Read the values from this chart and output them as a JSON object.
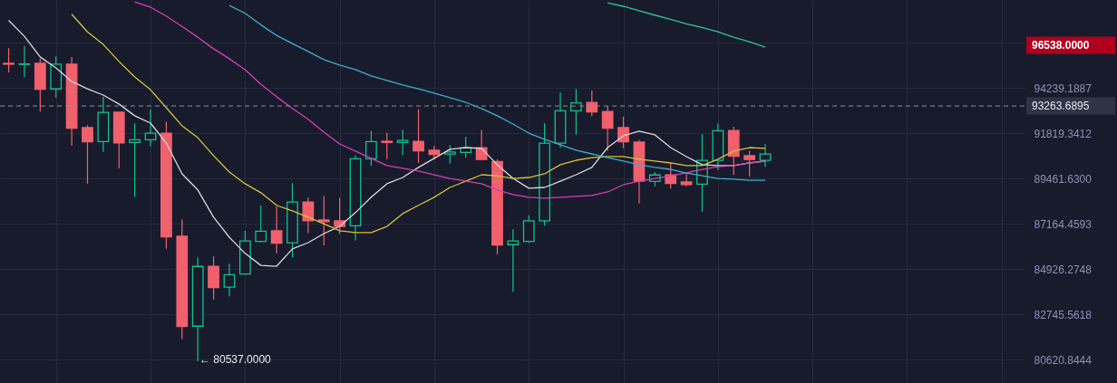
{
  "chart_data": {
    "type": "candlestick",
    "categories": [
      null,
      null,
      null,
      null,
      null,
      null,
      null,
      null,
      null,
      null,
      null,
      null,
      null,
      null,
      null,
      null,
      null,
      null,
      null,
      null,
      null,
      null,
      null,
      null,
      null,
      null,
      null,
      null,
      null,
      null,
      null,
      null,
      null,
      null,
      null,
      null,
      null,
      null,
      null,
      null,
      null,
      null,
      null,
      null,
      null,
      null,
      null,
      null,
      null
    ],
    "ohlc": [
      [
        95580,
        96410,
        95080,
        95530
      ],
      [
        95520,
        96538,
        94820,
        95540
      ],
      [
        95580,
        95830,
        92970,
        94160
      ],
      [
        94180,
        95960,
        93720,
        95530
      ],
      [
        95530,
        95930,
        91170,
        92080
      ],
      [
        92110,
        92240,
        89200,
        91360
      ],
      [
        91380,
        93760,
        90840,
        92920
      ],
      [
        92930,
        92930,
        89980,
        91310
      ],
      [
        91330,
        92320,
        88510,
        91470
      ],
      [
        91470,
        93080,
        91130,
        91820
      ],
      [
        91820,
        92430,
        85920,
        86510
      ],
      [
        86540,
        87380,
        81570,
        82160
      ],
      [
        82180,
        85490,
        80537,
        85050
      ],
      [
        85060,
        85540,
        83440,
        84020
      ],
      [
        84040,
        85190,
        83590,
        84650
      ],
      [
        84680,
        86810,
        84650,
        86300
      ],
      [
        86280,
        88090,
        86240,
        86790
      ],
      [
        86810,
        88030,
        85690,
        86190
      ],
      [
        86210,
        89230,
        85480,
        88260
      ],
      [
        88260,
        88480,
        86690,
        87310
      ],
      [
        87350,
        88560,
        86090,
        87260
      ],
      [
        87310,
        88470,
        86660,
        87030
      ],
      [
        87060,
        90650,
        86330,
        90480
      ],
      [
        90480,
        91930,
        90110,
        91380
      ],
      [
        91390,
        91830,
        90460,
        91330
      ],
      [
        91330,
        92000,
        90670,
        91430
      ],
      [
        91390,
        93090,
        90260,
        90890
      ],
      [
        90920,
        91140,
        90450,
        90700
      ],
      [
        90720,
        91190,
        90230,
        90830
      ],
      [
        90810,
        91630,
        90530,
        91050
      ],
      [
        91050,
        91980,
        90440,
        90440
      ],
      [
        90340,
        90450,
        85640,
        86100
      ],
      [
        86120,
        86880,
        83820,
        86300
      ],
      [
        86280,
        87590,
        86210,
        87310
      ],
      [
        87310,
        92350,
        87060,
        91290
      ],
      [
        91290,
        94000,
        91050,
        93010
      ],
      [
        93010,
        94180,
        91740,
        93430
      ],
      [
        93450,
        94090,
        92720,
        92950
      ],
      [
        92970,
        93260,
        90890,
        92080
      ],
      [
        92110,
        92690,
        91030,
        91360
      ],
      [
        91350,
        91470,
        88180,
        89320
      ],
      [
        89310,
        89790,
        89060,
        89640
      ],
      [
        89640,
        90260,
        88940,
        89200
      ],
      [
        89280,
        89790,
        89060,
        89150
      ],
      [
        89170,
        91770,
        87760,
        90390
      ],
      [
        90390,
        92320,
        89900,
        91950
      ],
      [
        91960,
        92160,
        89640,
        90610
      ],
      [
        90640,
        90890,
        89560,
        90440
      ],
      [
        90390,
        91240,
        90060,
        90720
      ]
    ],
    "colors": [
      "#f0616d",
      "#10c38f",
      "#f0616d",
      "#10c38f",
      "#f0616d",
      "#f0616d",
      "#10c38f",
      "#f0616d",
      "#10c38f",
      "#10c38f",
      "#f0616d",
      "#f0616d",
      "#10c38f",
      "#f0616d",
      "#10c38f",
      "#10c38f",
      "#10c38f",
      "#f0616d",
      "#10c38f",
      "#f0616d",
      "#f0616d",
      "#f0616d",
      "#10c38f",
      "#10c38f",
      "#f0616d",
      "#10c38f",
      "#f0616d",
      "#f0616d",
      "#10c38f",
      "#10c38f",
      "#f0616d",
      "#f0616d",
      "#10c38f",
      "#10c38f",
      "#10c38f",
      "#10c38f",
      "#10c38f",
      "#f0616d",
      "#f0616d",
      "#f0616d",
      "#f0616d",
      "#10c38f",
      "#f0616d",
      "#f0616d",
      "#10c38f",
      "#10c38f",
      "#f0616d",
      "#f0616d",
      "#10c38f"
    ],
    "series": [
      {
        "type": "line",
        "color": "#d9d9de",
        "values": [
          97970,
          97070,
          95930,
          95330,
          94590,
          94190,
          93850,
          93370,
          92740,
          92350,
          91300,
          89700,
          88870,
          87490,
          86490,
          85690,
          85100,
          85060,
          85910,
          86220,
          86670,
          87030,
          87720,
          88500,
          89190,
          89510,
          90030,
          90500,
          90970,
          91060,
          91020,
          90170,
          89462,
          88960,
          89000,
          89320,
          89650,
          90030,
          91060,
          91680,
          91920,
          91730,
          91060,
          90590,
          90170,
          90120,
          90120,
          90260,
          90360
        ]
      },
      {
        "type": "line",
        "color": "#d6c43a",
        "values": [
          null,
          null,
          null,
          null,
          98310,
          97320,
          96620,
          95680,
          94830,
          94140,
          93170,
          92210,
          91580,
          90640,
          89790,
          89190,
          88730,
          88090,
          87810,
          87490,
          87164,
          86810,
          86720,
          86720,
          87030,
          87670,
          88090,
          88500,
          89000,
          89320,
          89650,
          89600,
          89460,
          89510,
          89700,
          90170,
          90400,
          90540,
          90590,
          90590,
          90450,
          90360,
          90260,
          90120,
          90120,
          90450,
          90880,
          91060,
          91020
        ]
      },
      {
        "type": "line",
        "color": "#d63fb5",
        "values": [
          null,
          null,
          null,
          null,
          null,
          null,
          null,
          null,
          99010,
          98710,
          98210,
          97620,
          97020,
          96380,
          95830,
          95230,
          94440,
          93760,
          93130,
          92550,
          91870,
          91250,
          90880,
          90500,
          90120,
          89980,
          89840,
          89650,
          89462,
          89320,
          89190,
          88870,
          88640,
          88500,
          88450,
          88500,
          88540,
          88590,
          88770,
          89140,
          89320,
          89460,
          89600,
          89750,
          89930,
          90070,
          90120,
          90260,
          90360
        ]
      },
      {
        "type": "line",
        "color": "#3ab0cf",
        "values": [
          null,
          null,
          null,
          null,
          null,
          null,
          null,
          null,
          null,
          null,
          null,
          null,
          null,
          null,
          98810,
          98360,
          97720,
          97120,
          96670,
          96230,
          95780,
          95480,
          95230,
          94890,
          94640,
          94390,
          94190,
          93950,
          93710,
          93460,
          93130,
          92740,
          92300,
          91820,
          91490,
          91210,
          90920,
          90730,
          90540,
          90360,
          90170,
          90030,
          89930,
          89740,
          89600,
          89460,
          89420,
          89370,
          89370
        ]
      },
      {
        "type": "line",
        "color": "#2fc39a",
        "values": [
          null,
          null,
          null,
          null,
          null,
          null,
          null,
          null,
          null,
          null,
          null,
          null,
          null,
          null,
          null,
          null,
          null,
          null,
          null,
          null,
          null,
          null,
          null,
          null,
          null,
          null,
          null,
          null,
          null,
          null,
          null,
          null,
          null,
          null,
          null,
          null,
          null,
          null,
          98960,
          98760,
          98510,
          98260,
          98020,
          97770,
          97570,
          97320,
          97020,
          96770,
          96470
        ]
      }
    ],
    "log": "y",
    "ylim": [
      79540,
      99120
    ],
    "yticks": [
      80620.8444,
      82745.5618,
      84926.2748,
      87164.4593,
      {
        "value": 89461.63,
        "label": "89461.6300"
      },
      91819.3412,
      94239.1887,
      {
        "value": 96722.77,
        "label": null
      }
    ],
    "grid": true,
    "tick_labels": "y",
    "ref_lines": [
      {
        "axis": "y",
        "value": 93263.6895,
        "label": "93263.6895",
        "color": "#8a8f9e",
        "line_style": "dashed"
      }
    ],
    "annotations": [
      "96538.0000",
      "← 80537.0000"
    ]
  }
}
